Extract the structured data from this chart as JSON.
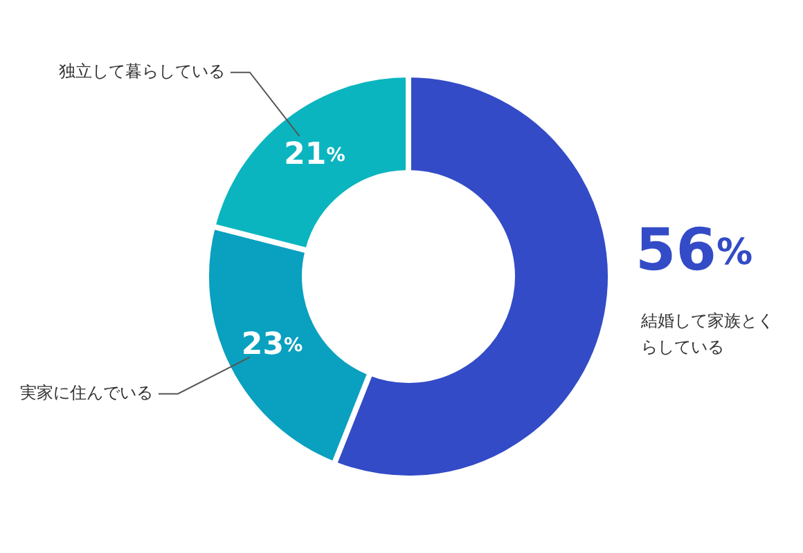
{
  "chart_data": {
    "type": "donut",
    "categories": [
      "結婚して家族とくらしている",
      "実家に住んでいる",
      "独立して暮らしている"
    ],
    "values": [
      56,
      23,
      21
    ],
    "value_labels": [
      "56%",
      "23%",
      "21%"
    ],
    "colors": [
      "#334bc6",
      "#0aa0bf",
      "#0ab5bf"
    ]
  }
}
